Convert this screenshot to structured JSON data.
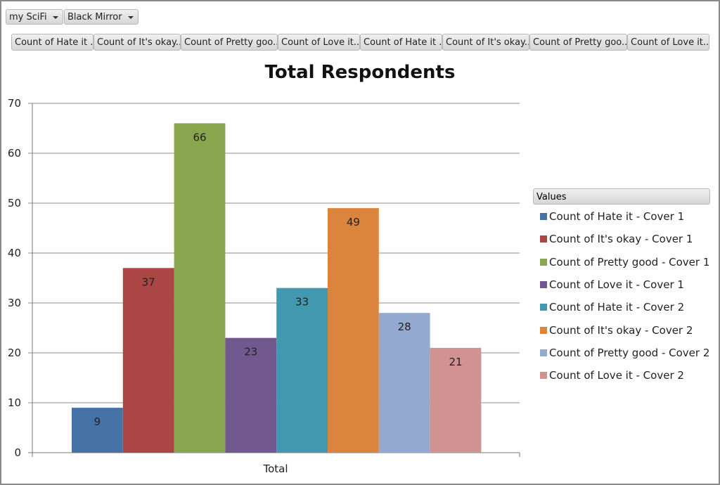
{
  "filters": [
    {
      "label": "my SciFi"
    },
    {
      "label": "Black Mirror"
    }
  ],
  "field_buttons": [
    "Count of Hate it ...",
    "Count of It's okay...",
    "Count of Pretty goo...",
    "Count of Love it...",
    "Count of Hate it ...",
    "Count of It's okay...",
    "Count of Pretty goo...",
    "Count of Love it..."
  ],
  "chart_data": {
    "type": "bar",
    "title": "Total Respondents",
    "categories": [
      "Total"
    ],
    "ylim": [
      0,
      70
    ],
    "yticks": [
      0,
      10,
      20,
      30,
      40,
      50,
      60,
      70
    ],
    "grid": true,
    "legend_title": "Values",
    "legend_position": "right",
    "series": [
      {
        "name": "Count of Hate it - Cover 1",
        "values": [
          9
        ],
        "color": "#4572A7"
      },
      {
        "name": "Count of It's okay - Cover 1",
        "values": [
          37
        ],
        "color": "#AA4643"
      },
      {
        "name": "Count of Pretty good - Cover 1",
        "values": [
          66
        ],
        "color": "#89A54E"
      },
      {
        "name": "Count of Love it - Cover 1",
        "values": [
          23
        ],
        "color": "#71588F"
      },
      {
        "name": "Count of Hate it - Cover 2",
        "values": [
          33
        ],
        "color": "#4198AF"
      },
      {
        "name": "Count of It's okay - Cover 2",
        "values": [
          49
        ],
        "color": "#DB843D"
      },
      {
        "name": "Count of Pretty good - Cover 2",
        "values": [
          28
        ],
        "color": "#93A9CF"
      },
      {
        "name": "Count of Love it - Cover 2",
        "values": [
          21
        ],
        "color": "#D19392"
      }
    ]
  }
}
